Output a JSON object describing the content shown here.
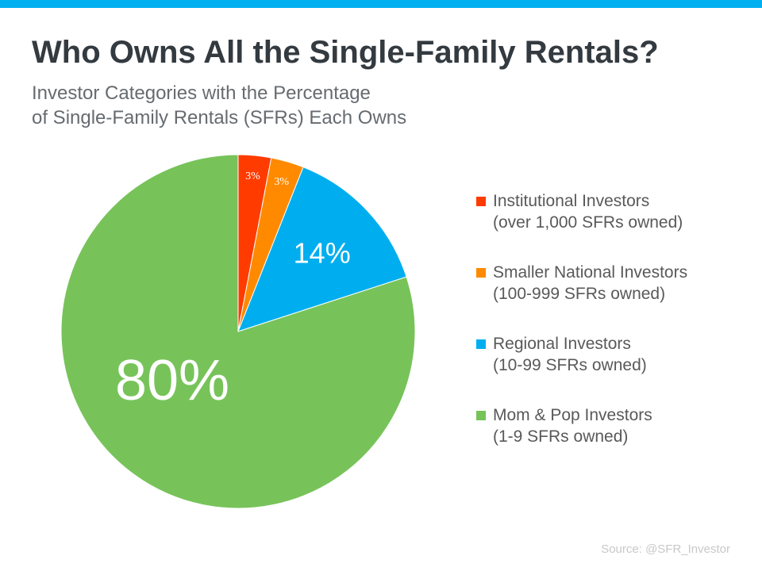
{
  "header": {
    "title": "Who Owns All the Single-Family Rentals?",
    "subtitle_line1": "Investor Categories with the Percentage",
    "subtitle_line2": "of Single-Family Rentals (SFRs) Each Owns"
  },
  "colors": {
    "top_bar": "#00b0f0",
    "title": "#333a40",
    "subtitle": "#666b70",
    "legend_text": "#595959",
    "source": "#c8c8c8"
  },
  "chart_data": {
    "type": "pie",
    "start_angle": "12 o'clock",
    "direction": "clockwise",
    "slices": [
      {
        "label": "Institutional Investors",
        "sublabel": "(over 1,000 SFRs owned)",
        "value": 3,
        "display": "3%",
        "color": "#ff3b00"
      },
      {
        "label": "Smaller National Investors",
        "sublabel": "(100-999 SFRs owned)",
        "value": 3,
        "display": "3%",
        "color": "#ff8a00"
      },
      {
        "label": "Regional Investors",
        "sublabel": "(10-99 SFRs owned)",
        "value": 14,
        "display": "14%",
        "color": "#00aeef"
      },
      {
        "label": "Mom & Pop Investors",
        "sublabel": "(1-9 SFRs owned)",
        "value": 80,
        "display": "80%",
        "color": "#77c35a"
      }
    ],
    "legend_position": "right"
  },
  "footer": {
    "source": "Source: @SFR_Investor"
  }
}
